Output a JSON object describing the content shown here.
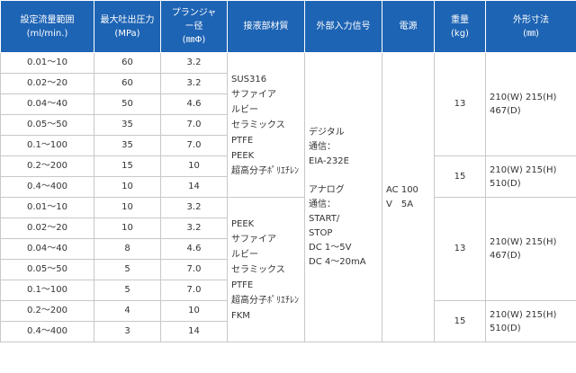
{
  "headers": {
    "flow": [
      "設定流量範囲",
      "(ml/min.)"
    ],
    "pressure": [
      "最大吐出圧力",
      "(MPa)"
    ],
    "plunger": [
      "プランジャ",
      "ー径",
      "(㎜Φ)"
    ],
    "material": "接液部材質",
    "signal": "外部入力信号",
    "power": "電源",
    "weight": [
      "重量",
      "(kg)"
    ],
    "dims": [
      "外形寸法",
      "(㎜)"
    ]
  },
  "rows": [
    {
      "flow": "0.01～10",
      "pressure": "60",
      "plunger": "3.2"
    },
    {
      "flow": "0.02～20",
      "pressure": "60",
      "plunger": "3.2"
    },
    {
      "flow": "0.04～40",
      "pressure": "50",
      "plunger": "4.6"
    },
    {
      "flow": "0.05～50",
      "pressure": "35",
      "plunger": "7.0"
    },
    {
      "flow": "0.1～100",
      "pressure": "35",
      "plunger": "7.0"
    },
    {
      "flow": "0.2～200",
      "pressure": "15",
      "plunger": "10"
    },
    {
      "flow": "0.4～400",
      "pressure": "10",
      "plunger": "14"
    },
    {
      "flow": "0.01～10",
      "pressure": "10",
      "plunger": "3.2"
    },
    {
      "flow": "0.02～20",
      "pressure": "10",
      "plunger": "3.2"
    },
    {
      "flow": "0.04～40",
      "pressure": "8",
      "plunger": "4.6"
    },
    {
      "flow": "0.05～50",
      "pressure": "5",
      "plunger": "7.0"
    },
    {
      "flow": "0.1～100",
      "pressure": "5",
      "plunger": "7.0"
    },
    {
      "flow": "0.2～200",
      "pressure": "4",
      "plunger": "10"
    },
    {
      "flow": "0.4～400",
      "pressure": "3",
      "plunger": "14"
    }
  ],
  "materials_group1": [
    "SUS316",
    "サファイア",
    "ルビー",
    "セラミックス",
    "PTFE",
    "PEEK",
    "超高分子ﾎﾟﾘｴﾁﾚﾝ"
  ],
  "materials_group2": [
    "PEEK",
    "サファイア",
    "ルビー",
    "セラミックス",
    "PTFE",
    "超高分子ﾎﾟﾘｴﾁﾚﾝ",
    "FKM"
  ],
  "signal": [
    "デジタル",
    "通信：",
    "EIA-232E",
    "",
    "アナログ",
    "通信：",
    "START/",
    "STOP",
    "DC 1～5V",
    "DC 4～20mA"
  ],
  "power": [
    "AC 100",
    "V　5A"
  ],
  "weights": [
    "13",
    "15",
    "13",
    "15"
  ],
  "dims": [
    [
      "210(W) 215(H)",
      "467(D)"
    ],
    [
      "210(W) 215(H)",
      "510(D)"
    ],
    [
      "210(W) 215(H)",
      "467(D)"
    ],
    [
      "210(W) 215(H)",
      "510(D)"
    ]
  ],
  "colors": {
    "header_bg": "#1e64b4",
    "header_text": "#ffffff",
    "border": "#c8c8c8",
    "text": "#333333"
  }
}
